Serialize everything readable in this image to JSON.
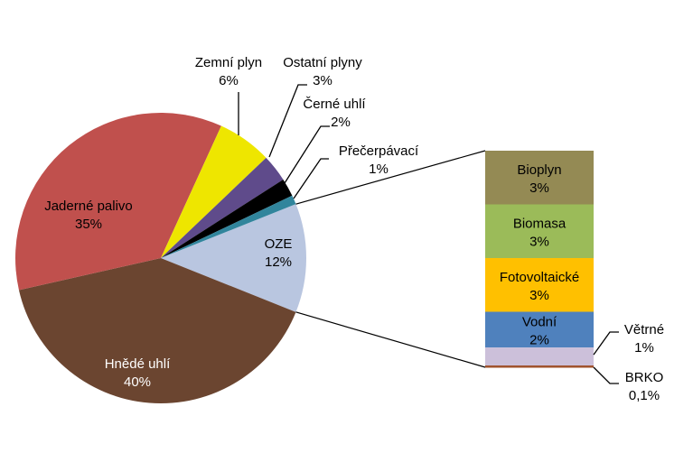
{
  "chart_data": {
    "type": "pie-of-bar",
    "title": "",
    "pie": [
      {
        "label": "OZE",
        "value": 12,
        "value_label": "12%",
        "color": "#B9C6E0"
      },
      {
        "label": "Hnědé uhlí",
        "value": 40,
        "value_label": "40%",
        "color": "#6B4530"
      },
      {
        "label": "Jaderné palivo",
        "value": 35,
        "value_label": "35%",
        "color": "#C0504D"
      },
      {
        "label": "Zemní plyn",
        "value": 6,
        "value_label": "6%",
        "color": "#EEE600"
      },
      {
        "label": "Ostatní plyny",
        "value": 3,
        "value_label": "3%",
        "color": "#5F4B8B"
      },
      {
        "label": "Černé uhlí",
        "value": 2,
        "value_label": "2%",
        "color": "#000000"
      },
      {
        "label": "Přečerpávací",
        "value": 1,
        "value_label": "1%",
        "color": "#31859C"
      }
    ],
    "bar": [
      {
        "label": "Bioplyn",
        "value": 3,
        "value_label": "3%",
        "color": "#948A54"
      },
      {
        "label": "Biomasa",
        "value": 3,
        "value_label": "3%",
        "color": "#9BBB59"
      },
      {
        "label": "Fotovoltaické",
        "value": 3,
        "value_label": "3%",
        "color": "#FFC000"
      },
      {
        "label": "Vodní",
        "value": 2,
        "value_label": "2%",
        "color": "#4F81BD"
      },
      {
        "label": "Větrné",
        "value": 1,
        "value_label": "1%",
        "color": "#CCC0DA"
      },
      {
        "label": "BRKO",
        "value": 0.1,
        "value_label": "0,1%",
        "color": "#A0522D"
      }
    ]
  }
}
